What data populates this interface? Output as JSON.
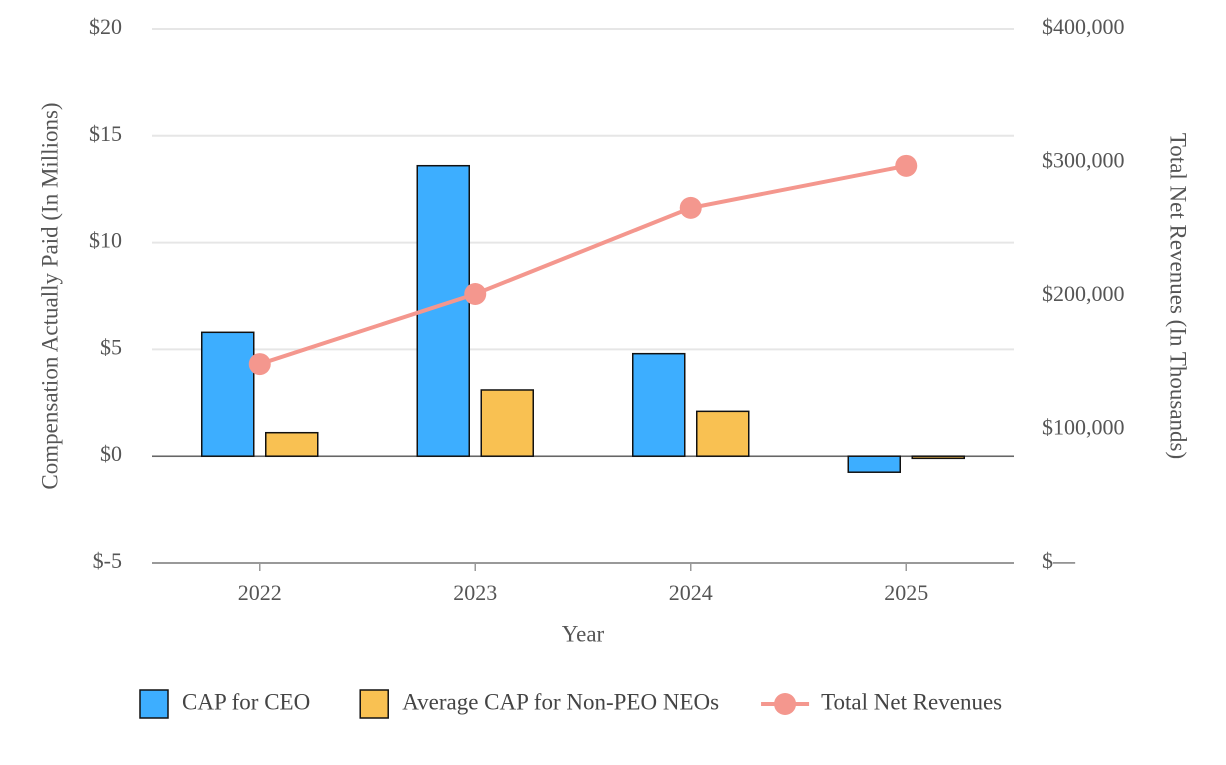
{
  "chart_data": {
    "type": "bar",
    "categories": [
      "2022",
      "2023",
      "2024",
      "2025"
    ],
    "x_label": "Year",
    "y_label": "Compensation Actually Paid (In Millions)",
    "y2_label": "Total Net Revenues (In Thousands)",
    "ylim": [
      -5,
      20
    ],
    "yticks": [
      {
        "value": -5,
        "label": "$-5"
      },
      {
        "value": 0,
        "label": "$0"
      },
      {
        "value": 5,
        "label": "$5"
      },
      {
        "value": 10,
        "label": "$10"
      },
      {
        "value": 15,
        "label": "$15"
      },
      {
        "value": 20,
        "label": "$20"
      }
    ],
    "y2lim": [
      0,
      400000
    ],
    "y2ticks": [
      {
        "value": 0,
        "label": "$—"
      },
      {
        "value": 100000,
        "label": "$100,000"
      },
      {
        "value": 200000,
        "label": "$200,000"
      },
      {
        "value": 300000,
        "label": "$300,000"
      },
      {
        "value": 400000,
        "label": "$400,000"
      }
    ],
    "grid": true,
    "legend": "bottom",
    "series": [
      {
        "name": "CAP for CEO",
        "type": "bar",
        "color": "#3daeff",
        "values": [
          5.8,
          13.6,
          4.8,
          -0.75
        ]
      },
      {
        "name": "Average CAP for Non-PEO NEOs",
        "type": "bar",
        "color": "#f9c152",
        "values": [
          1.1,
          3.1,
          2.1,
          -0.1
        ]
      },
      {
        "name": "Total Net Revenues",
        "type": "line",
        "axis": "y2",
        "color": "#f4978e",
        "values": [
          149000,
          201500,
          266000,
          297500
        ]
      }
    ]
  }
}
